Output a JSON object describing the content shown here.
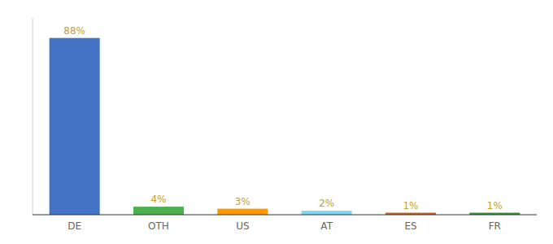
{
  "chart_data": {
    "type": "bar",
    "categories": [
      "DE",
      "OTH",
      "US",
      "AT",
      "ES",
      "FR"
    ],
    "values": [
      88,
      4,
      3,
      2,
      1,
      1
    ],
    "value_labels": [
      "88%",
      "4%",
      "3%",
      "2%",
      "1%",
      "1%"
    ],
    "colors": [
      "#4472c4",
      "#4caf50",
      "#ff9800",
      "#80d8f0",
      "#c0622a",
      "#388e3c"
    ],
    "ylim": [
      0,
      98
    ],
    "data_labels": true,
    "tick_labels": "x",
    "grid": false
  }
}
